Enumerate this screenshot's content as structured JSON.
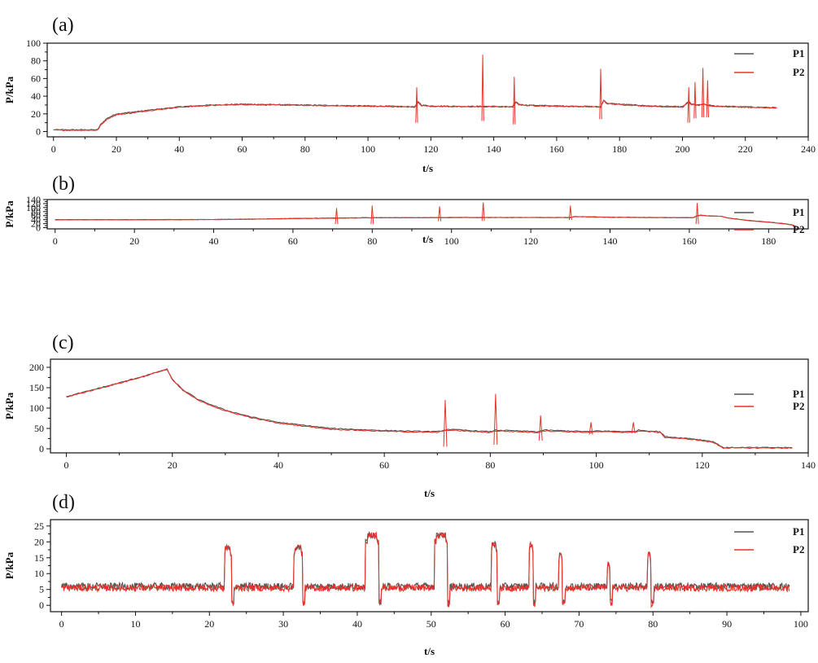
{
  "colors": {
    "p1": "#555555",
    "p2": "#e8322a",
    "axis": "#111111"
  },
  "chart_data": [
    {
      "type": "line",
      "panel_label": "(a)",
      "xlabel": "t/s",
      "ylabel": "P/kPa",
      "xlim": [
        -2,
        240
      ],
      "ylim": [
        -6,
        100
      ],
      "xticks": [
        0,
        20,
        40,
        60,
        80,
        100,
        120,
        140,
        160,
        180,
        200,
        220,
        240
      ],
      "yticks": [
        0,
        20,
        40,
        60,
        80,
        100
      ],
      "legend": "top-right",
      "series": [
        {
          "name": "P1",
          "x": [
            0,
            14,
            15,
            17,
            20,
            25,
            30,
            40,
            50,
            60,
            70,
            80,
            90,
            100,
            110,
            115,
            116,
            117,
            120,
            130,
            137,
            140,
            146,
            147,
            148,
            150,
            160,
            170,
            174,
            175,
            176,
            180,
            190,
            200,
            202,
            203,
            205,
            207,
            208,
            210,
            220,
            230
          ],
          "y": [
            2,
            2,
            8,
            15,
            20,
            22,
            24,
            28,
            30,
            31,
            30.5,
            30,
            29.5,
            29,
            28.5,
            28,
            34,
            30,
            29,
            28.5,
            28.5,
            28.5,
            28,
            34,
            31,
            30,
            29,
            28.5,
            28,
            36,
            32,
            31,
            29,
            28,
            34,
            31,
            30,
            31,
            30,
            29,
            28,
            27
          ]
        },
        {
          "name": "P2",
          "x": [
            0,
            14,
            15,
            17,
            20,
            25,
            30,
            40,
            50,
            60,
            70,
            80,
            90,
            100,
            110,
            115,
            116,
            117,
            120,
            130,
            137,
            140,
            146,
            147,
            148,
            150,
            160,
            170,
            174,
            175,
            176,
            180,
            190,
            200,
            202,
            203,
            205,
            207,
            208,
            210,
            220,
            230
          ],
          "y": [
            1.5,
            1.5,
            7,
            14,
            19,
            21,
            23.5,
            27.5,
            29.5,
            30.5,
            30,
            29.5,
            29,
            28.5,
            28,
            27.5,
            33,
            29.5,
            28.5,
            28,
            28,
            28,
            27.5,
            33,
            30.5,
            29.5,
            28.5,
            28,
            27.5,
            35,
            31.5,
            30.5,
            28.5,
            27.5,
            33,
            30.5,
            29.5,
            30.5,
            29.5,
            28.5,
            27.5,
            26.5
          ],
          "spikes": [
            [
              115.5,
              50,
              10
            ],
            [
              136.5,
              87,
              12
            ],
            [
              146.5,
              62,
              8
            ],
            [
              174,
              71,
              14
            ],
            [
              202,
              50,
              10
            ],
            [
              204,
              56,
              15
            ],
            [
              206.5,
              72,
              16
            ],
            [
              208,
              58,
              16
            ]
          ]
        }
      ]
    },
    {
      "type": "line",
      "panel_label": "(b)",
      "xlabel": "t/s",
      "ylabel": "P/kPa",
      "xlim": [
        -2,
        190
      ],
      "ylim": [
        -6,
        140
      ],
      "xticks": [
        0,
        20,
        40,
        60,
        80,
        100,
        120,
        140,
        160,
        180
      ],
      "yticks": [
        0,
        20,
        40,
        60,
        80,
        100,
        120,
        140
      ],
      "legend": "top-right",
      "series": [
        {
          "name": "P1",
          "x": [
            0,
            20,
            40,
            50,
            60,
            70,
            80,
            90,
            100,
            110,
            120,
            130,
            131,
            140,
            150,
            161,
            162,
            163,
            165,
            168,
            170,
            175,
            180,
            184,
            186,
            187
          ],
          "y": [
            40,
            40,
            41,
            43,
            46,
            48,
            50,
            50,
            51,
            51,
            51,
            51,
            56,
            52,
            51,
            50,
            60,
            62,
            59,
            57,
            48,
            36,
            28,
            20,
            14,
            4
          ]
        },
        {
          "name": "P2",
          "x": [
            0,
            20,
            40,
            50,
            60,
            70,
            80,
            90,
            100,
            110,
            120,
            130,
            131,
            140,
            150,
            161,
            162,
            163,
            165,
            168,
            170,
            175,
            180,
            184,
            186,
            187
          ],
          "y": [
            39,
            39,
            40,
            42,
            45,
            47,
            49,
            49,
            50,
            50,
            50,
            50,
            55,
            51,
            50,
            49,
            59,
            61,
            58,
            56,
            47,
            35,
            27,
            19,
            13,
            2
          ],
          "spikes": [
            [
              71,
              98,
              18
            ],
            [
              80,
              110,
              18
            ],
            [
              97,
              106,
              32
            ],
            [
              108,
              125,
              34
            ],
            [
              130,
              110,
              38
            ],
            [
              162,
              123,
              18
            ]
          ]
        }
      ]
    },
    {
      "type": "line",
      "panel_label": "(c)",
      "xlabel": "t/s",
      "ylabel": "P/kPa",
      "xlim": [
        -3,
        140
      ],
      "ylim": [
        -10,
        220
      ],
      "xticks": [
        0,
        20,
        40,
        60,
        80,
        100,
        120,
        140
      ],
      "yticks": [
        0,
        50,
        100,
        150,
        200
      ],
      "legend": "top-right",
      "series": [
        {
          "name": "P1",
          "x": [
            0,
            5,
            10,
            15,
            19,
            20,
            22,
            25,
            30,
            35,
            40,
            50,
            60,
            70,
            72,
            80,
            81,
            89,
            90,
            99,
            100,
            107,
            108,
            112,
            113,
            118,
            122,
            124,
            130,
            137
          ],
          "y": [
            128,
            145,
            162,
            180,
            195,
            170,
            145,
            120,
            95,
            78,
            65,
            50,
            45,
            42,
            48,
            42,
            46,
            42,
            46,
            42,
            44,
            42,
            46,
            42,
            30,
            25,
            18,
            3,
            3,
            3
          ]
        },
        {
          "name": "P2",
          "x": [
            0,
            5,
            10,
            15,
            19,
            20,
            22,
            25,
            30,
            35,
            40,
            50,
            60,
            70,
            72,
            80,
            81,
            89,
            90,
            99,
            100,
            107,
            108,
            112,
            113,
            118,
            122,
            124,
            130,
            137
          ],
          "y": [
            127,
            144,
            161,
            179,
            196,
            169,
            143,
            118,
            93,
            76,
            63,
            48,
            43,
            40,
            46,
            40,
            44,
            40,
            44,
            40,
            42,
            40,
            44,
            40,
            28,
            23,
            16,
            2,
            2,
            2
          ],
          "spikes": [
            [
              71.5,
              120,
              5
            ],
            [
              81,
              135,
              10
            ],
            [
              89.5,
              82,
              20
            ],
            [
              99,
              65,
              35
            ],
            [
              107,
              65,
              38
            ]
          ]
        }
      ]
    },
    {
      "type": "line",
      "panel_label": "(d)",
      "xlabel": "t/s",
      "ylabel": "P/kPa",
      "xlim": [
        -1.5,
        101
      ],
      "ylim": [
        -2,
        27
      ],
      "xticks": [
        0,
        10,
        20,
        30,
        40,
        50,
        60,
        70,
        80,
        90,
        100
      ],
      "yticks": [
        0,
        5,
        10,
        15,
        20,
        25
      ],
      "legend": "top-right",
      "noise_baseline": 5.8,
      "noise_amplitude": 1.1,
      "series": [
        {
          "name": "P1",
          "x": [
            0,
            98.5
          ],
          "y": [
            6,
            6
          ]
        },
        {
          "name": "P2",
          "x": [
            0,
            98.5
          ],
          "y": [
            5.5,
            5.5
          ],
          "pulses": [
            [
              22.5,
              19,
              1
            ],
            [
              32,
              19,
              1.2
            ],
            [
              42,
              23,
              1.8
            ],
            [
              51.3,
              23,
              1.8
            ],
            [
              58.5,
              20,
              0.8
            ],
            [
              63.5,
              20,
              0.6
            ],
            [
              67.5,
              17,
              0.5
            ],
            [
              74,
              14,
              0.4
            ],
            [
              79.5,
              17,
              0.5
            ]
          ]
        }
      ]
    }
  ]
}
